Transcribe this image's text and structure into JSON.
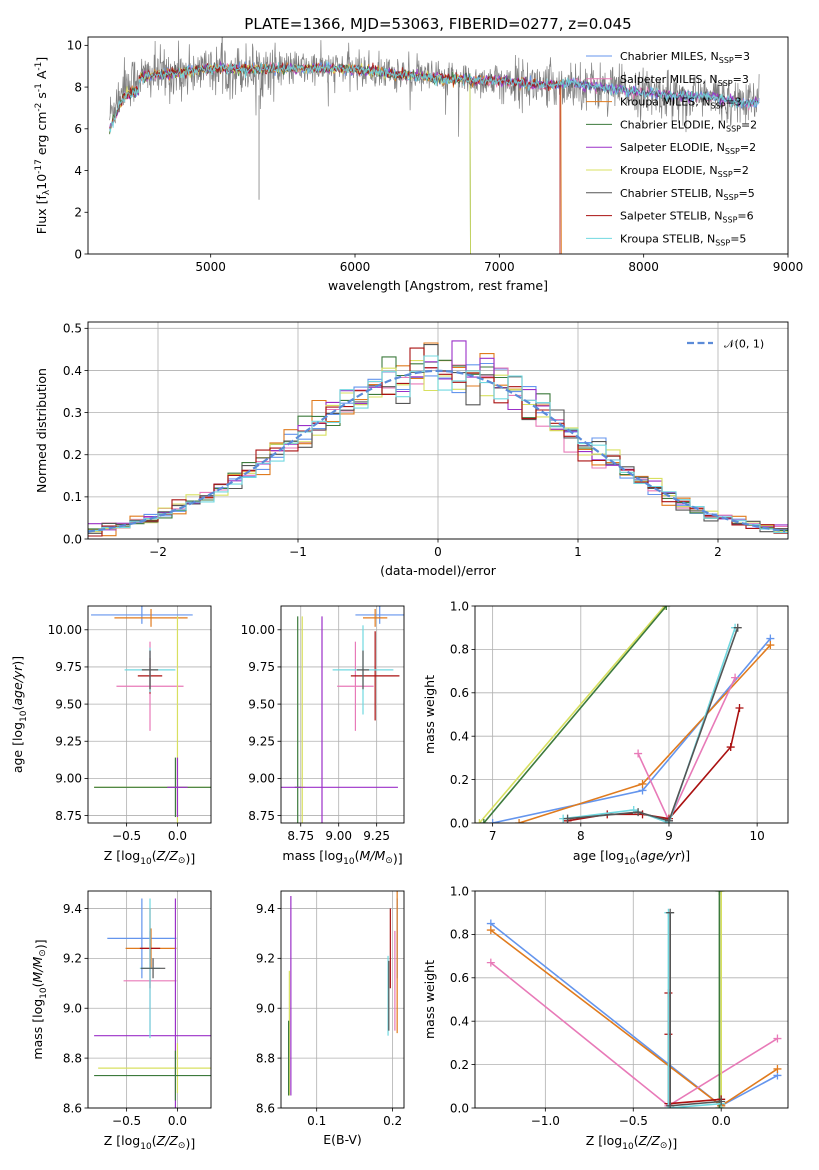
{
  "title": "PLATE=1366, MJD=53063, FIBERID=0277, z=0.045",
  "series_colors": {
    "chabrier_miles": "#6495ed",
    "salpeter_miles": "#e87ab8",
    "kroupa_miles": "#e07b1e",
    "chabrier_elodie": "#3c7a3c",
    "salpeter_elodie": "#9b30c8",
    "kroupa_elodie": "#d8e060",
    "chabrier_stelib": "#555555",
    "salpeter_stelib": "#aa1111",
    "kroupa_stelib": "#70d8e0",
    "data": "#808080",
    "normal": "#5b8bd8"
  },
  "legend": [
    {
      "key": "chabrier_miles",
      "label": "Chabrier MILES, N",
      "sub": "SSP",
      "eq": "=3"
    },
    {
      "key": "salpeter_miles",
      "label": "Salpeter MILES, N",
      "sub": "SSP",
      "eq": "=3"
    },
    {
      "key": "kroupa_miles",
      "label": "Kroupa MILES, N",
      "sub": "SSP",
      "eq": "=3"
    },
    {
      "key": "chabrier_elodie",
      "label": "Chabrier ELODIE, N",
      "sub": "SSP",
      "eq": "=2"
    },
    {
      "key": "salpeter_elodie",
      "label": "Salpeter ELODIE, N",
      "sub": "SSP",
      "eq": "=2"
    },
    {
      "key": "kroupa_elodie",
      "label": "Kroupa ELODIE, N",
      "sub": "SSP",
      "eq": "=2"
    },
    {
      "key": "chabrier_stelib",
      "label": "Chabrier STELIB, N",
      "sub": "SSP",
      "eq": "=5"
    },
    {
      "key": "salpeter_stelib",
      "label": "Salpeter STELIB, N",
      "sub": "SSP",
      "eq": "=6"
    },
    {
      "key": "kroupa_stelib",
      "label": "Kroupa STELIB, N",
      "sub": "SSP",
      "eq": "=5"
    }
  ],
  "chart_data": [
    {
      "id": "spectrum",
      "type": "line",
      "xlabel": "wavelength [Angstrom, rest frame]",
      "ylabel_parts": [
        "Flux [f",
        "λ",
        "10",
        "-17",
        " erg cm",
        "-2",
        " s",
        "-1",
        " A",
        "-1",
        "]"
      ],
      "xlim": [
        4150,
        9000
      ],
      "ylim": [
        0,
        10.4
      ],
      "xticks": [
        5000,
        6000,
        7000,
        8000,
        9000
      ],
      "yticks": [
        0,
        2,
        4,
        6,
        8,
        10
      ],
      "grid": false,
      "legend_placement": "top-right",
      "data_envelope": [
        [
          4300,
          6.6
        ],
        [
          4400,
          8.2
        ],
        [
          4600,
          8.6
        ],
        [
          4800,
          8.7
        ],
        [
          5000,
          8.9
        ],
        [
          5200,
          8.85
        ],
        [
          5500,
          8.9
        ],
        [
          5800,
          8.9
        ],
        [
          6000,
          8.85
        ],
        [
          6300,
          8.6
        ],
        [
          6600,
          8.4
        ],
        [
          7000,
          8.3
        ],
        [
          7300,
          8.1
        ],
        [
          7500,
          8.2
        ],
        [
          7800,
          7.9
        ],
        [
          8200,
          7.6
        ],
        [
          8500,
          7.5
        ],
        [
          8700,
          7.2
        ],
        [
          8800,
          7.3
        ]
      ],
      "model_dropouts": [
        {
          "key": "kroupa_elodie",
          "x": 6800
        },
        {
          "key": "chabrier_elodie",
          "x": 6800
        },
        {
          "key": "salpeter_stelib",
          "x": 7420
        },
        {
          "key": "kroupa_miles",
          "x": 7430
        }
      ]
    },
    {
      "id": "residual-hist",
      "type": "line",
      "xlabel": "(data-model)/error",
      "ylabel": "Normed distribution",
      "xlim": [
        -2.5,
        2.5
      ],
      "ylim": [
        0,
        0.515
      ],
      "xticks": [
        -2,
        -1,
        0,
        1,
        2
      ],
      "yticks": [
        0.0,
        0.1,
        0.2,
        0.3,
        0.4,
        0.5
      ],
      "grid": true,
      "legend_label": "𝒩(0, 1)",
      "legend_placement": "top-right",
      "bin_width": 0.1
    },
    {
      "id": "age-vs-Z",
      "type": "scatter",
      "xlabel": "Z [log10(Z/Z⊙)]",
      "ylabel": "age  [log10(age/yr)]",
      "xlim": [
        -0.88,
        0.33
      ],
      "ylim": [
        8.7,
        10.16
      ],
      "xticks": [
        -0.5,
        0.0
      ],
      "yticks": [
        8.75,
        9.0,
        9.25,
        9.5,
        9.75,
        10.0
      ],
      "points": [
        {
          "key": "chabrier_miles",
          "x": -0.35,
          "y": 10.1,
          "xerr": 0.5,
          "yerr": 0.06
        },
        {
          "key": "kroupa_miles",
          "x": -0.26,
          "y": 10.08,
          "xerr": 0.36,
          "yerr": 0.06
        },
        {
          "key": "salpeter_miles",
          "x": -0.27,
          "y": 9.62,
          "xerr": 0.33,
          "yerr": 0.3
        },
        {
          "key": "kroupa_elodie",
          "x": 0.0,
          "y": 8.94,
          "xerr": 0.82,
          "yerr": 1.15
        },
        {
          "key": "chabrier_elodie",
          "x": -0.02,
          "y": 8.94,
          "xerr": 0.8,
          "yerr": 0.2
        },
        {
          "key": "salpeter_elodie",
          "x": 0.0,
          "y": 8.94,
          "xerr": 0.1,
          "yerr": 0.2
        },
        {
          "key": "salpeter_stelib",
          "x": -0.27,
          "y": 9.69,
          "xerr": 0.12,
          "yerr": 0.12
        },
        {
          "key": "kroupa_stelib",
          "x": -0.27,
          "y": 9.73,
          "xerr": 0.25,
          "yerr": 0.15
        },
        {
          "key": "chabrier_stelib",
          "x": -0.27,
          "y": 9.73,
          "xerr": 0.08,
          "yerr": 0.13
        }
      ]
    },
    {
      "id": "age-vs-mass",
      "type": "scatter",
      "xlabel": "mass [log10(M/M⊙)]",
      "ylabel": "",
      "xlim": [
        8.62,
        9.43
      ],
      "ylim": [
        8.7,
        10.16
      ],
      "xticks": [
        8.75,
        9.0,
        9.25
      ],
      "yticks": [
        8.75,
        9.0,
        9.25,
        9.5,
        9.75,
        10.0
      ],
      "points": [
        {
          "key": "chabrier_miles",
          "x": 9.27,
          "y": 10.1,
          "xerr": 0.16,
          "yerr": 0.06
        },
        {
          "key": "kroupa_miles",
          "x": 9.24,
          "y": 10.08,
          "xerr": 0.08,
          "yerr": 0.06
        },
        {
          "key": "salpeter_miles",
          "x": 9.11,
          "y": 9.62,
          "xerr": 0.12,
          "yerr": 0.3
        },
        {
          "key": "kroupa_elodie",
          "x": 8.76,
          "y": 8.94,
          "xerr": 0.02,
          "yerr": 1.15
        },
        {
          "key": "chabrier_elodie",
          "x": 8.73,
          "y": 8.94,
          "xerr": 0.02,
          "yerr": 1.15
        },
        {
          "key": "salpeter_elodie",
          "x": 8.89,
          "y": 8.94,
          "xerr": 0.5,
          "yerr": 1.15
        },
        {
          "key": "salpeter_stelib",
          "x": 9.24,
          "y": 9.69,
          "xerr": 0.16,
          "yerr": 0.3
        },
        {
          "key": "kroupa_stelib",
          "x": 9.16,
          "y": 9.73,
          "xerr": 0.2,
          "yerr": 0.3
        },
        {
          "key": "chabrier_stelib",
          "x": 9.16,
          "y": 9.73,
          "xerr": 0.04,
          "yerr": 0.13
        }
      ]
    },
    {
      "id": "weight-vs-age",
      "type": "line",
      "xlabel": "age  [log10(age/yr)]",
      "ylabel": "mass weight",
      "xlim": [
        6.8,
        10.35
      ],
      "ylim": [
        0,
        1.0
      ],
      "xticks": [
        7,
        8,
        9,
        10
      ],
      "yticks": [
        0.0,
        0.2,
        0.4,
        0.6,
        0.8,
        1.0
      ],
      "series": [
        {
          "key": "kroupa_elodie",
          "x": [
            6.85,
            8.95
          ],
          "y": [
            0.0,
            1.0
          ]
        },
        {
          "key": "chabrier_elodie",
          "x": [
            6.9,
            8.97
          ],
          "y": [
            0.0,
            1.0
          ]
        },
        {
          "key": "chabrier_miles",
          "x": [
            7.0,
            8.7,
            10.15
          ],
          "y": [
            0.0,
            0.15,
            0.85
          ]
        },
        {
          "key": "kroupa_miles",
          "x": [
            7.3,
            8.7,
            10.15
          ],
          "y": [
            0.0,
            0.18,
            0.82
          ]
        },
        {
          "key": "salpeter_miles",
          "x": [
            8.65,
            9.0,
            9.75
          ],
          "y": [
            0.32,
            0.01,
            0.67
          ]
        },
        {
          "key": "salpeter_stelib",
          "x": [
            7.85,
            8.3,
            8.7,
            9.0,
            9.7,
            9.8
          ],
          "y": [
            0.01,
            0.04,
            0.04,
            0.02,
            0.35,
            0.53
          ]
        },
        {
          "key": "kroupa_stelib",
          "x": [
            7.8,
            8.6,
            9.0,
            9.75
          ],
          "y": [
            0.02,
            0.06,
            0.0,
            0.9
          ]
        },
        {
          "key": "chabrier_stelib",
          "x": [
            7.85,
            8.65,
            9.0,
            9.78
          ],
          "y": [
            0.02,
            0.05,
            0.01,
            0.9
          ]
        }
      ]
    },
    {
      "id": "mass-vs-Z",
      "type": "scatter",
      "xlabel": "Z [log10(Z/Z⊙)]",
      "ylabel": "mass [log10(M/M⊙)]",
      "xlim": [
        -0.88,
        0.33
      ],
      "ylim": [
        8.6,
        9.47
      ],
      "xticks": [
        -0.5,
        0.0
      ],
      "yticks": [
        8.6,
        8.8,
        9.0,
        9.2,
        9.4
      ],
      "points": [
        {
          "key": "chabrier_miles",
          "x": -0.35,
          "y": 9.28,
          "xerr": 0.34,
          "yerr": 0.16
        },
        {
          "key": "kroupa_miles",
          "x": -0.26,
          "y": 9.24,
          "xerr": 0.25,
          "yerr": 0.08
        },
        {
          "key": "salpeter_miles",
          "x": -0.27,
          "y": 9.11,
          "xerr": 0.26,
          "yerr": 0.2
        },
        {
          "key": "salpeter_elodie",
          "x": -0.02,
          "y": 8.89,
          "xerr": 0.8,
          "yerr": 0.55
        },
        {
          "key": "kroupa_elodie",
          "x": 0.0,
          "y": 8.76,
          "xerr": 0.78,
          "yerr": 0.1
        },
        {
          "key": "chabrier_elodie",
          "x": -0.02,
          "y": 8.73,
          "xerr": 0.8,
          "yerr": 0.1
        },
        {
          "key": "salpeter_stelib",
          "x": -0.27,
          "y": 9.24,
          "xerr": 0.1,
          "yerr": 0.16
        },
        {
          "key": "kroupa_stelib",
          "x": -0.27,
          "y": 9.16,
          "xerr": 0.1,
          "yerr": 0.28
        },
        {
          "key": "chabrier_stelib",
          "x": -0.24,
          "y": 9.16,
          "xerr": 0.12,
          "yerr": 0.04
        }
      ]
    },
    {
      "id": "mass-vs-EBV",
      "type": "scatter",
      "xlabel": "E(B-V)",
      "ylabel": "",
      "xlim": [
        0.053,
        0.215
      ],
      "ylim": [
        8.6,
        9.47
      ],
      "xticks": [
        0.1,
        0.2
      ],
      "yticks": [
        8.6,
        8.8,
        9.0,
        9.2,
        9.4
      ],
      "points": [
        {
          "key": "chabrier_miles",
          "x": 0.206,
          "y": 9.28,
          "xerr": 0.0,
          "yerr": 0.16
        },
        {
          "key": "kroupa_miles",
          "x": 0.206,
          "y": 9.24,
          "xerr": 0.0,
          "yerr": 0.34
        },
        {
          "key": "salpeter_miles",
          "x": 0.203,
          "y": 9.11,
          "xerr": 0.0,
          "yerr": 0.2
        },
        {
          "key": "salpeter_elodie",
          "x": 0.066,
          "y": 9.05,
          "xerr": 0.0,
          "yerr": 0.4
        },
        {
          "key": "kroupa_elodie",
          "x": 0.064,
          "y": 8.9,
          "xerr": 0.0,
          "yerr": 0.25
        },
        {
          "key": "chabrier_elodie",
          "x": 0.063,
          "y": 8.8,
          "xerr": 0.0,
          "yerr": 0.15
        },
        {
          "key": "salpeter_stelib",
          "x": 0.197,
          "y": 9.24,
          "xerr": 0.0,
          "yerr": 0.16
        },
        {
          "key": "kroupa_stelib",
          "x": 0.194,
          "y": 9.05,
          "xerr": 0.0,
          "yerr": 0.16
        },
        {
          "key": "chabrier_stelib",
          "x": 0.195,
          "y": 9.05,
          "xerr": 0.0,
          "yerr": 0.14
        }
      ]
    },
    {
      "id": "weight-vs-Z",
      "type": "line",
      "xlabel": "Z [log10(Z/Z⊙)]",
      "ylabel": "mass weight",
      "xlim": [
        -1.4,
        0.38
      ],
      "ylim": [
        0,
        1.0
      ],
      "xticks": [
        -1.0,
        -0.5,
        0.0
      ],
      "yticks": [
        0.0,
        0.2,
        0.4,
        0.6,
        0.8,
        1.0
      ],
      "series": [
        {
          "key": "chabrier_miles",
          "x": [
            -1.31,
            0.0,
            0.32
          ],
          "y": [
            0.85,
            0.01,
            0.15
          ]
        },
        {
          "key": "kroupa_miles",
          "x": [
            -1.31,
            0.0,
            0.32
          ],
          "y": [
            0.82,
            0.01,
            0.18
          ]
        },
        {
          "key": "salpeter_miles",
          "x": [
            -1.31,
            -0.3,
            0.32
          ],
          "y": [
            0.67,
            0.01,
            0.32
          ]
        },
        {
          "key": "kroupa_elodie",
          "x": [
            0.0,
            0.0
          ],
          "y": [
            0.0,
            1.0
          ]
        },
        {
          "key": "chabrier_elodie",
          "x": [
            -0.01,
            -0.01
          ],
          "y": [
            0.0,
            1.0
          ]
        },
        {
          "key": "salpeter_stelib",
          "x": [
            -0.3,
            -0.3,
            -0.3,
            0.0
          ],
          "y": [
            0.34,
            0.53,
            0.02,
            0.04
          ]
        },
        {
          "key": "kroupa_stelib",
          "x": [
            -0.3,
            -0.3,
            0.0
          ],
          "y": [
            0.9,
            0.0,
            0.02
          ]
        },
        {
          "key": "chabrier_stelib",
          "x": [
            -0.29,
            -0.29,
            0.0
          ],
          "y": [
            0.9,
            0.01,
            0.03
          ]
        }
      ]
    }
  ]
}
